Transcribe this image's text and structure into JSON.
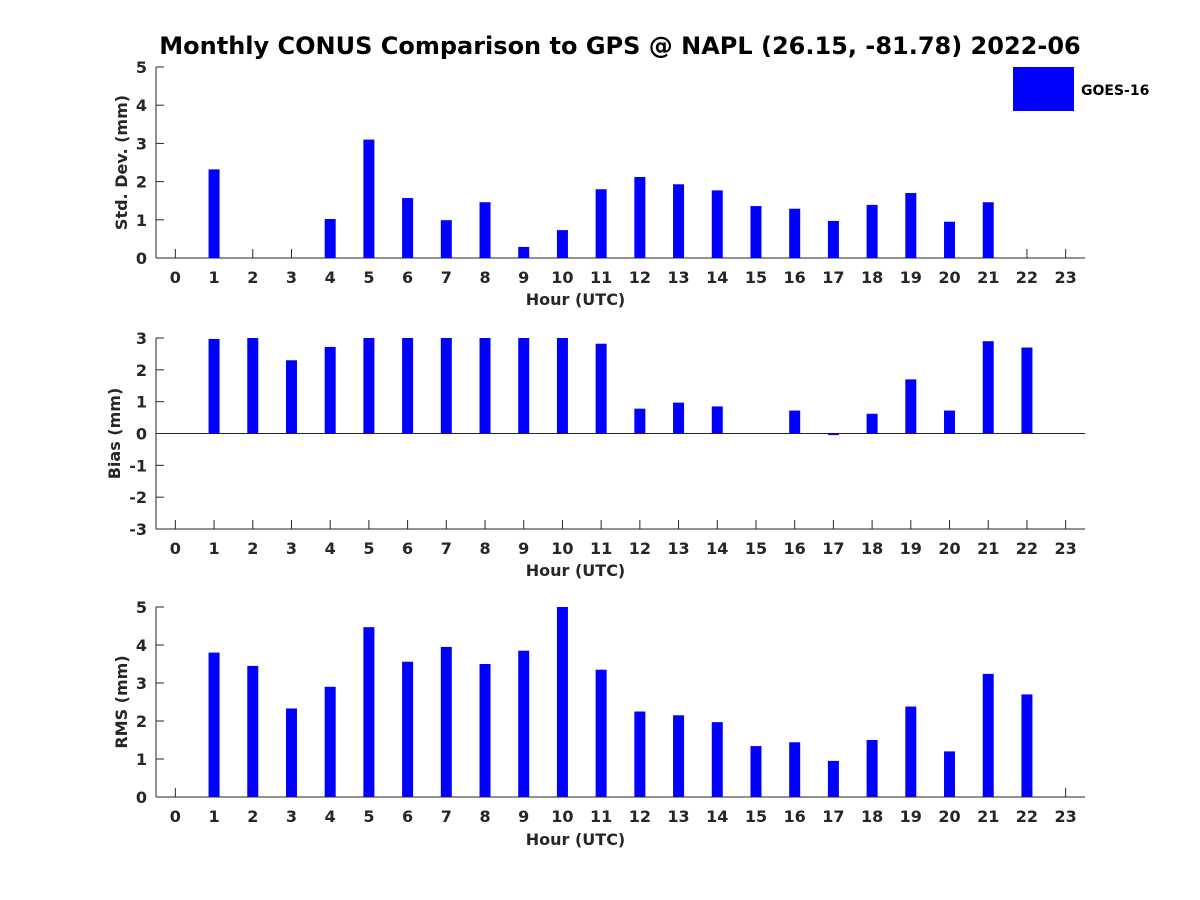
{
  "figure": {
    "title": "Monthly CONUS Comparison to GPS @ NAPL (26.15, -81.78) 2022-06",
    "legend": {
      "label": "GOES-16",
      "color": "#0000FF",
      "position": "top-right"
    }
  },
  "chart_data": [
    {
      "type": "bar",
      "x": [
        0,
        1,
        2,
        3,
        4,
        5,
        6,
        7,
        8,
        9,
        10,
        11,
        12,
        13,
        14,
        15,
        16,
        17,
        18,
        19,
        20,
        21,
        22,
        23
      ],
      "series": [
        {
          "name": "GOES-16",
          "values": [
            null,
            2.32,
            null,
            null,
            1.02,
            3.1,
            1.57,
            0.99,
            1.46,
            0.29,
            0.73,
            1.8,
            2.12,
            1.93,
            1.77,
            1.36,
            1.29,
            0.97,
            1.39,
            1.7,
            0.95,
            1.46,
            null,
            null
          ]
        }
      ],
      "xlabel": "Hour (UTC)",
      "ylabel": "Std. Dev. (mm)",
      "xlim": [
        -0.5,
        23.5
      ],
      "ylim": [
        0,
        5
      ],
      "yticks": [
        0,
        1,
        2,
        3,
        4,
        5
      ],
      "xticks": [
        0,
        1,
        2,
        3,
        4,
        5,
        6,
        7,
        8,
        9,
        10,
        11,
        12,
        13,
        14,
        15,
        16,
        17,
        18,
        19,
        20,
        21,
        22,
        23
      ],
      "color": "#0000FF",
      "grid": false
    },
    {
      "type": "bar",
      "x": [
        0,
        1,
        2,
        3,
        4,
        5,
        6,
        7,
        8,
        9,
        10,
        11,
        12,
        13,
        14,
        15,
        16,
        17,
        18,
        19,
        20,
        21,
        22,
        23
      ],
      "series": [
        {
          "name": "GOES-16",
          "values": [
            null,
            2.97,
            3.0,
            2.3,
            2.72,
            3.0,
            3.0,
            3.0,
            3.0,
            3.0,
            3.0,
            2.82,
            0.78,
            0.97,
            0.85,
            0.0,
            0.72,
            -0.05,
            0.62,
            1.7,
            0.72,
            2.9,
            2.7,
            null
          ]
        }
      ],
      "xlabel": "Hour (UTC)",
      "ylabel": "Bias (mm)",
      "xlim": [
        -0.5,
        23.5
      ],
      "ylim": [
        -3,
        3
      ],
      "yticks": [
        -3,
        -2,
        -1,
        0,
        1,
        2,
        3
      ],
      "xticks": [
        0,
        1,
        2,
        3,
        4,
        5,
        6,
        7,
        8,
        9,
        10,
        11,
        12,
        13,
        14,
        15,
        16,
        17,
        18,
        19,
        20,
        21,
        22,
        23
      ],
      "color": "#0000FF",
      "grid": false
    },
    {
      "type": "bar",
      "x": [
        0,
        1,
        2,
        3,
        4,
        5,
        6,
        7,
        8,
        9,
        10,
        11,
        12,
        13,
        14,
        15,
        16,
        17,
        18,
        19,
        20,
        21,
        22,
        23
      ],
      "series": [
        {
          "name": "GOES-16",
          "values": [
            null,
            3.8,
            3.45,
            2.33,
            2.9,
            4.47,
            3.56,
            3.95,
            3.5,
            3.85,
            5.0,
            3.35,
            2.25,
            2.15,
            1.97,
            1.34,
            1.44,
            0.95,
            1.5,
            2.38,
            1.2,
            3.24,
            2.7,
            null
          ]
        }
      ],
      "xlabel": "Hour (UTC)",
      "ylabel": "RMS (mm)",
      "xlim": [
        -0.5,
        23.5
      ],
      "ylim": [
        0,
        5
      ],
      "yticks": [
        0,
        1,
        2,
        3,
        4,
        5
      ],
      "xticks": [
        0,
        1,
        2,
        3,
        4,
        5,
        6,
        7,
        8,
        9,
        10,
        11,
        12,
        13,
        14,
        15,
        16,
        17,
        18,
        19,
        20,
        21,
        22,
        23
      ],
      "color": "#0000FF",
      "grid": false
    }
  ]
}
